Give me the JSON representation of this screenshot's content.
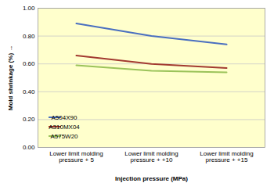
{
  "chart_data": {
    "type": "line",
    "x_label": "Injection pressure (MPa)",
    "y_label": "Mold shrinkage (%)",
    "categories": [
      "Lower limit molding pressure + 5",
      "Lower limit molding pressure + +10",
      "Lower limit molding pressure + +15"
    ],
    "series": [
      {
        "name": "A504X90",
        "color": "#4a6fc0",
        "values": [
          0.89,
          0.8,
          0.74
        ]
      },
      {
        "name": "A310MX04",
        "color": "#a23a30",
        "values": [
          0.66,
          0.6,
          0.57
        ]
      },
      {
        "name": "A575W20",
        "color": "#9bc35a",
        "values": [
          0.59,
          0.55,
          0.54
        ]
      }
    ],
    "ylim": [
      0,
      1
    ],
    "yticks": [
      {
        "value": 0,
        "label": "0.00"
      },
      {
        "value": 0.2,
        "label": "0.20"
      },
      {
        "value": 0.4,
        "label": "0.40"
      },
      {
        "value": 0.6,
        "label": "0.60"
      },
      {
        "value": 0.8,
        "label": "0.80"
      },
      {
        "value": 1,
        "label": "1.00"
      }
    ],
    "grid": true,
    "legend": "lower left"
  }
}
